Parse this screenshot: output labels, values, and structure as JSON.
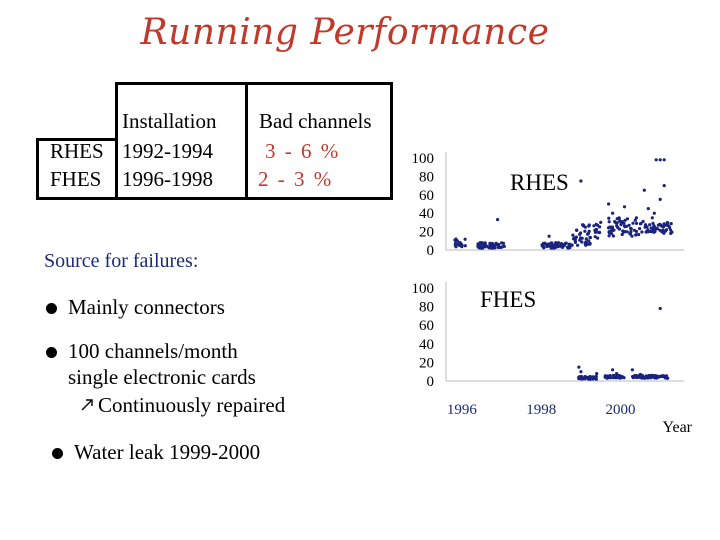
{
  "slide": {
    "title": "Running Performance",
    "table": {
      "headers": [
        "",
        "Installation",
        "Bad channels"
      ],
      "rows": [
        {
          "name": "RHES",
          "installation": "1992-1994",
          "bad": "3 - 6 %"
        },
        {
          "name": "FHES",
          "installation": "1996-1998",
          "bad": "2 - 3 %"
        }
      ]
    },
    "failures_label": "Source for failures:",
    "bullets": [
      {
        "text": "Mainly connectors"
      },
      {
        "text": "100 channels/month",
        "line2": "single electronic cards",
        "sub": "Continuously repaired",
        "sub_icon": "arrow-icon"
      },
      {
        "text": "Water leak 1999-2000"
      }
    ],
    "colors": {
      "title": "#c0392b",
      "points": "#1a237e",
      "label_blue": "#1a2a7a"
    }
  },
  "chart_data": [
    {
      "type": "scatter",
      "title": "RHES",
      "xlabel": "Year",
      "ylim": [
        0,
        100
      ],
      "yticks": [
        "0",
        "20",
        "40",
        "60",
        "80",
        "100"
      ],
      "xlim": [
        1995.6,
        2001.6
      ],
      "clusters": [
        {
          "x": [
            1995.8,
            1996.1
          ],
          "y": [
            3,
            12
          ]
        },
        {
          "x": [
            1996.4,
            1997.1
          ],
          "y": [
            2,
            8
          ]
        },
        {
          "x": [
            1998.0,
            1998.8
          ],
          "y": [
            2,
            8
          ]
        },
        {
          "x": [
            1998.8,
            1999.5
          ],
          "y": [
            5,
            28
          ]
        },
        {
          "x": [
            1999.7,
            2000.6
          ],
          "y": [
            15,
            35
          ]
        },
        {
          "x": [
            2000.6,
            2001.3
          ],
          "y": [
            18,
            30
          ]
        }
      ],
      "outliers": [
        {
          "x": 1996.5,
          "y": 8
        },
        {
          "x": 1996.9,
          "y": 33
        },
        {
          "x": 1998.2,
          "y": 15
        },
        {
          "x": 1999.0,
          "y": 75
        },
        {
          "x": 1999.5,
          "y": 30
        },
        {
          "x": 1999.7,
          "y": 50
        },
        {
          "x": 1999.8,
          "y": 40
        },
        {
          "x": 2000.1,
          "y": 47
        },
        {
          "x": 2000.4,
          "y": 35
        },
        {
          "x": 2000.6,
          "y": 65
        },
        {
          "x": 2000.7,
          "y": 45
        },
        {
          "x": 2000.8,
          "y": 35
        },
        {
          "x": 2000.9,
          "y": 98
        },
        {
          "x": 2001.0,
          "y": 98
        },
        {
          "x": 2001.1,
          "y": 98
        },
        {
          "x": 2001.1,
          "y": 70
        },
        {
          "x": 2001.0,
          "y": 55
        },
        {
          "x": 2000.85,
          "y": 40
        }
      ]
    },
    {
      "type": "scatter",
      "title": "FHES",
      "xlabel": "Year",
      "ylim": [
        0,
        100
      ],
      "yticks": [
        "0",
        "20",
        "40",
        "60",
        "80",
        "100"
      ],
      "xlim": [
        1995.6,
        2001.6
      ],
      "xticks": [
        {
          "v": 1996,
          "label": "1996"
        },
        {
          "v": 1998,
          "label": "1998"
        },
        {
          "v": 2000,
          "label": "2000"
        }
      ],
      "clusters": [
        {
          "x": [
            1998.9,
            1999.4
          ],
          "y": [
            2,
            5
          ]
        },
        {
          "x": [
            1999.6,
            2000.1
          ],
          "y": [
            3,
            6
          ]
        },
        {
          "x": [
            2000.3,
            2001.2
          ],
          "y": [
            3,
            6
          ]
        }
      ],
      "outliers": [
        {
          "x": 1998.95,
          "y": 15
        },
        {
          "x": 1999.0,
          "y": 10
        },
        {
          "x": 1999.4,
          "y": 8
        },
        {
          "x": 1999.8,
          "y": 12
        },
        {
          "x": 1999.9,
          "y": 8
        },
        {
          "x": 2000.3,
          "y": 12
        },
        {
          "x": 2000.5,
          "y": 7
        },
        {
          "x": 2000.8,
          "y": 6
        },
        {
          "x": 2001.0,
          "y": 78
        }
      ]
    }
  ]
}
